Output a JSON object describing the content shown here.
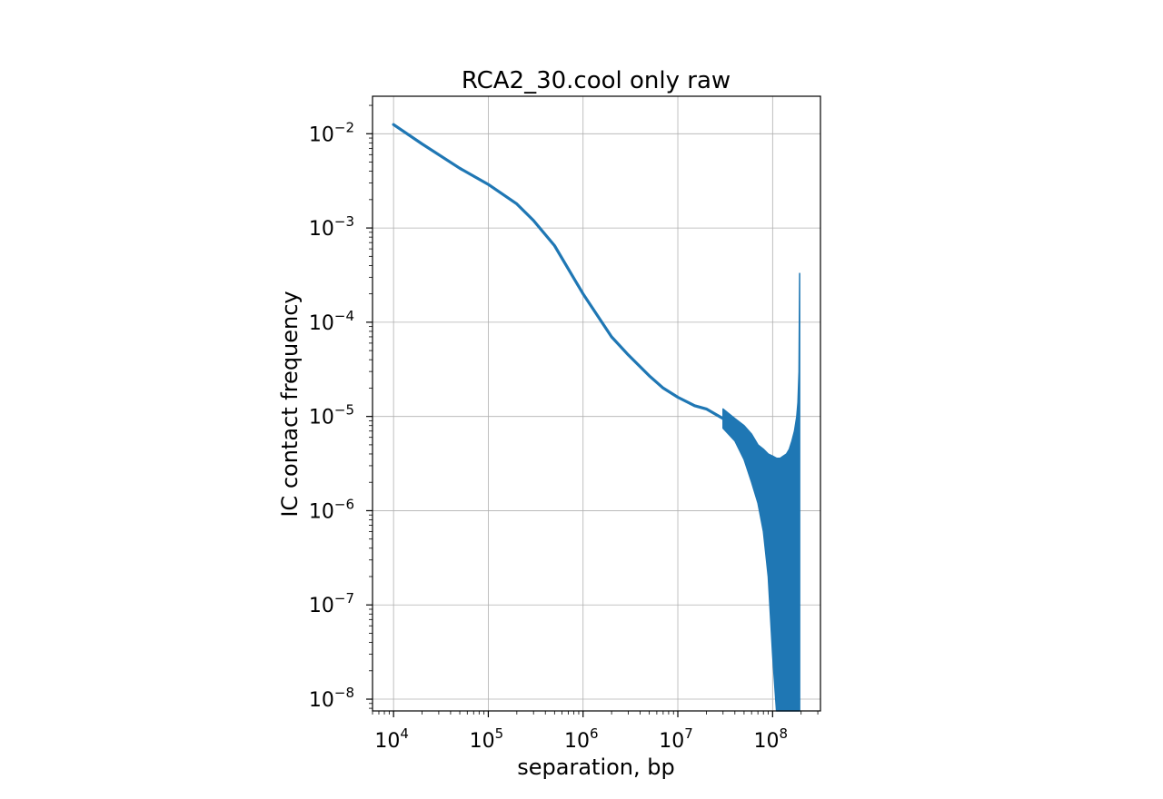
{
  "chart_data": {
    "type": "line",
    "title": "RCA2_30.cool only raw",
    "xlabel": "separation, bp",
    "ylabel": "IC contact frequency",
    "xscale": "log",
    "yscale": "log",
    "xlim": [
      6000,
      320000000
    ],
    "ylim": [
      7.5e-09,
      0.025
    ],
    "grid": true,
    "color": "#1f77b4",
    "x_ticks": [
      {
        "value": 10000,
        "base": "10",
        "exp": "4"
      },
      {
        "value": 100000,
        "base": "10",
        "exp": "5"
      },
      {
        "value": 1000000,
        "base": "10",
        "exp": "6"
      },
      {
        "value": 10000000,
        "base": "10",
        "exp": "7"
      },
      {
        "value": 100000000,
        "base": "10",
        "exp": "8"
      }
    ],
    "y_ticks": [
      {
        "value": 1e-08,
        "base": "10",
        "exp": "−8"
      },
      {
        "value": 1e-07,
        "base": "10",
        "exp": "−7"
      },
      {
        "value": 1e-06,
        "base": "10",
        "exp": "−6"
      },
      {
        "value": 1e-05,
        "base": "10",
        "exp": "−5"
      },
      {
        "value": 0.0001,
        "base": "10",
        "exp": "−4"
      },
      {
        "value": 0.001,
        "base": "10",
        "exp": "−3"
      },
      {
        "value": 0.01,
        "base": "10",
        "exp": "−2"
      }
    ],
    "series": [
      {
        "x": [
          10000,
          20000,
          50000,
          100000,
          200000,
          300000,
          500000,
          1000000,
          2000000,
          3000000,
          5000000,
          7000000,
          10000000,
          15000000,
          20000000,
          30000000
        ],
        "y": [
          0.0125,
          0.0078,
          0.0043,
          0.0029,
          0.0018,
          0.0012,
          0.00065,
          0.0002,
          7e-05,
          4.5e-05,
          2.7e-05,
          2e-05,
          1.6e-05,
          1.3e-05,
          1.2e-05,
          9.5e-06
        ]
      }
    ],
    "noisy_band": {
      "x": [
        30000000,
        40000000,
        50000000,
        60000000,
        70000000,
        80000000,
        90000000,
        100000000,
        110000000,
        120000000,
        130000000,
        140000000,
        150000000,
        160000000,
        170000000,
        180000000,
        185000000,
        190000000,
        193000000
      ],
      "upper": [
        1.2e-05,
        9.5e-06,
        8e-06,
        6.5e-06,
        5e-06,
        4.5e-06,
        4e-06,
        3.8e-06,
        3.6e-06,
        3.6e-06,
        3.8e-06,
        4e-06,
        4.5e-06,
        5.5e-06,
        7e-06,
        1e-05,
        1.4e-05,
        3e-05,
        0.00033
      ],
      "lower": [
        7.5e-06,
        5.5e-06,
        3.5e-06,
        2e-06,
        1.2e-06,
        6e-07,
        2e-07,
        3e-08,
        7.5e-09,
        7.5e-09,
        7.5e-09,
        7.5e-09,
        7.5e-09,
        7.5e-09,
        7.5e-09,
        7.5e-09,
        7.5e-09,
        7.5e-09,
        7.5e-09
      ]
    }
  }
}
